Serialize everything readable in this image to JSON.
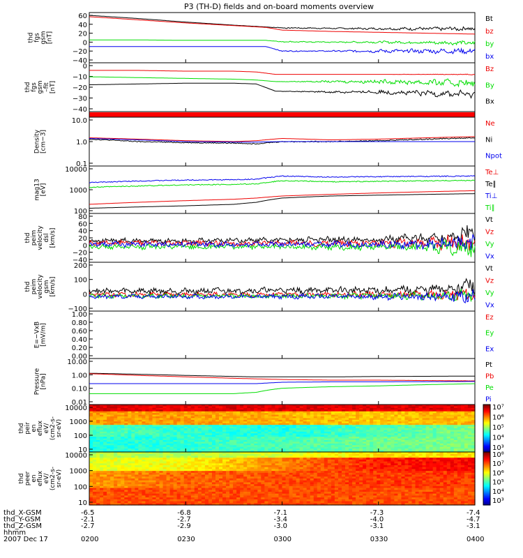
{
  "title": "P3 (TH-D) fields and on-board moments overview",
  "time_ticks": [
    "0200",
    "0230",
    "0300",
    "0330",
    "0400"
  ],
  "orbit_rows": [
    {
      "label": "thd_X-GSM",
      "values": [
        "-6.5",
        "-6.8",
        "-7.1",
        "-7.3",
        "-7.4"
      ]
    },
    {
      "label": "thd_Y-GSM",
      "values": [
        "-2.1",
        "-2.7",
        "-3.4",
        "-4.0",
        "-4.7"
      ]
    },
    {
      "label": "thd_Z-GSM",
      "values": [
        "-2.7",
        "-2.9",
        "-3.0",
        "-3.1",
        "-3.1"
      ]
    },
    {
      "label": "hhmm",
      "values": []
    }
  ],
  "date_label": "2007 Dec 17",
  "colors": {
    "black": "#000000",
    "red": "#ee0000",
    "green": "#00dd00",
    "blue": "#0000ee"
  },
  "chart_data": [
    {
      "type": "line",
      "ylabel": [
        "thd",
        "fgs",
        "gsm",
        "[nT]"
      ],
      "yticks": [
        "60",
        "40",
        "20",
        "0",
        "−20",
        "−40"
      ],
      "ylim": [
        -40,
        60
      ],
      "x": [
        0,
        15,
        30,
        45,
        55,
        60,
        75,
        90,
        120
      ],
      "series": [
        {
          "name": "Bt",
          "color": "#000000",
          "values": [
            60,
            53,
            45,
            38,
            34,
            32,
            31,
            30,
            30
          ],
          "wave": [
            0,
            0,
            0,
            0,
            0,
            1,
            1,
            2,
            4
          ]
        },
        {
          "name": "bz",
          "color": "#ee0000",
          "values": [
            57,
            50,
            43,
            37,
            33,
            27,
            24,
            22,
            18
          ],
          "wave": [
            0,
            0,
            0,
            0,
            0,
            0,
            0,
            0,
            0
          ]
        },
        {
          "name": "by",
          "color": "#00dd00",
          "values": [
            5,
            5,
            4,
            4,
            4,
            1,
            0,
            0,
            -2
          ],
          "wave": [
            0,
            0,
            0,
            0,
            0,
            1,
            1,
            2,
            4
          ]
        },
        {
          "name": "bx",
          "color": "#0000ee",
          "values": [
            -10,
            -10,
            -10,
            -10,
            -10,
            -20,
            -20,
            -20,
            -20
          ],
          "wave": [
            0,
            0,
            0,
            0,
            0,
            1,
            1,
            3,
            5
          ]
        }
      ]
    },
    {
      "type": "line",
      "ylabel": [
        "thd",
        "fgs",
        "gsm",
        "–fit",
        "[nT]"
      ],
      "yticks": [
        "0",
        "−10",
        "−20",
        "−30",
        "−40"
      ],
      "ylim": [
        -48,
        6
      ],
      "x": [
        0,
        15,
        30,
        45,
        52,
        58,
        75,
        90,
        120
      ],
      "series": [
        {
          "name": "Bz",
          "color": "#ee0000",
          "values": [
            0,
            0,
            -1,
            -1,
            -2,
            -5,
            -5,
            -5,
            -5
          ],
          "wave": [
            0,
            0,
            0,
            0,
            0,
            0,
            0,
            0,
            0.5
          ]
        },
        {
          "name": "By",
          "color": "#00dd00",
          "values": [
            -8,
            -9,
            -10,
            -11,
            -12,
            -14,
            -14,
            -14,
            -16
          ],
          "wave": [
            0,
            0,
            0,
            0,
            0,
            0,
            1,
            2,
            4
          ]
        },
        {
          "name": "Bx",
          "color": "#000000",
          "values": [
            -18,
            -17,
            -16,
            -16,
            -17,
            -26,
            -27,
            -27,
            -30
          ],
          "wave": [
            0,
            0,
            0,
            0,
            0,
            0,
            1,
            2,
            4
          ]
        }
      ]
    },
    {
      "type": "heatmap",
      "ylabel": [],
      "color": "#ff0000"
    },
    {
      "type": "line",
      "scale": "log",
      "ylabel": [
        "Density",
        "[cm−3]"
      ],
      "yticks": [
        "10.0",
        "1.0",
        "0.1"
      ],
      "ylim": [
        0.1,
        10
      ],
      "x": [
        0,
        15,
        30,
        45,
        52,
        60,
        75,
        90,
        120
      ],
      "series": [
        {
          "name": "Ne",
          "color": "#ee0000",
          "values": [
            1.5,
            1.3,
            1.1,
            1.0,
            1.1,
            1.4,
            1.2,
            1.3,
            1.7
          ],
          "wave": [
            0,
            0,
            0,
            0,
            0,
            0,
            0,
            0,
            0
          ]
        },
        {
          "name": "Ni",
          "color": "#000000",
          "values": [
            1.3,
            1.0,
            0.9,
            0.85,
            0.8,
            1.0,
            1.0,
            1.1,
            1.5
          ],
          "wave": [
            0.1,
            0.1,
            0.1,
            0.1,
            0.1,
            0.1,
            0.1,
            0.1,
            0.1
          ]
        },
        {
          "name": "Npot",
          "color": "#0000ee",
          "values": [
            1.4,
            1.2,
            1.0,
            0.95,
            0.95,
            1.0,
            1.0,
            1.0,
            1.0
          ],
          "wave": [
            0,
            0,
            0,
            0,
            0,
            0,
            0,
            0,
            0
          ]
        }
      ]
    },
    {
      "type": "line",
      "scale": "log",
      "ylabel": [
        "mag13",
        "[eV]"
      ],
      "yticks": [
        "10000",
        "1000",
        "100"
      ],
      "ylim": [
        100,
        10000
      ],
      "x": [
        0,
        15,
        30,
        45,
        52,
        60,
        75,
        90,
        120
      ],
      "series": [
        {
          "name": "Te⊥",
          "color": "#ee0000",
          "values": [
            200,
            250,
            300,
            350,
            400,
            500,
            600,
            700,
            900
          ],
          "wave": [
            0,
            0,
            0,
            0,
            0,
            0,
            0,
            0,
            0
          ]
        },
        {
          "name": "Te∥",
          "color": "#000000",
          "values": [
            130,
            150,
            170,
            200,
            250,
            400,
            500,
            550,
            650
          ],
          "wave": [
            0,
            0,
            0,
            0,
            0,
            0,
            0,
            0,
            0
          ]
        },
        {
          "name": "Ti⊥",
          "color": "#0000ee",
          "values": [
            2200,
            2600,
            2900,
            3000,
            3200,
            4500,
            4000,
            4200,
            4500
          ],
          "wave": [
            0.1,
            0.1,
            0.1,
            0.1,
            0.1,
            0.1,
            0.1,
            0.1,
            0.1
          ]
        },
        {
          "name": "Ti∥",
          "color": "#00dd00",
          "values": [
            1300,
            1500,
            1700,
            1800,
            1900,
            2700,
            2400,
            2500,
            2800
          ],
          "wave": [
            0.1,
            0.1,
            0.1,
            0.1,
            0.1,
            0.1,
            0.1,
            0.1,
            0.1
          ]
        }
      ]
    },
    {
      "type": "line",
      "ylabel": [
        "thd",
        "peim",
        "velocity",
        "dsl",
        "[km/s]"
      ],
      "yticks": [
        "80",
        "60",
        "40",
        "20",
        "0",
        "−20",
        "−40"
      ],
      "ylim": [
        -40,
        80
      ],
      "x": [
        0,
        30,
        60,
        90,
        110,
        120
      ],
      "series": [
        {
          "name": "Vt",
          "color": "#000000",
          "values": [
            12,
            12,
            14,
            16,
            20,
            30
          ],
          "wave": [
            6,
            6,
            6,
            8,
            15,
            25
          ]
        },
        {
          "name": "Vz",
          "color": "#ee0000",
          "values": [
            5,
            5,
            5,
            5,
            5,
            5
          ],
          "wave": [
            6,
            6,
            6,
            8,
            15,
            25
          ]
        },
        {
          "name": "Vy",
          "color": "#00dd00",
          "values": [
            -5,
            -5,
            -5,
            -5,
            -5,
            -5
          ],
          "wave": [
            6,
            6,
            6,
            8,
            15,
            25
          ]
        },
        {
          "name": "Vx",
          "color": "#0000ee",
          "values": [
            2,
            2,
            2,
            2,
            2,
            2
          ],
          "wave": [
            6,
            6,
            6,
            8,
            15,
            25
          ]
        }
      ]
    },
    {
      "type": "line",
      "ylabel": [
        "thd",
        "peim",
        "velocity",
        "gsm",
        "[km/s]"
      ],
      "yticks": [
        "200",
        "100",
        "0",
        "−100"
      ],
      "ylim": [
        -100,
        250
      ],
      "x": [
        0,
        30,
        60,
        90,
        110,
        120
      ],
      "series": [
        {
          "name": "Vt",
          "color": "#000000",
          "values": [
            40,
            40,
            45,
            45,
            50,
            90
          ],
          "wave": [
            20,
            20,
            20,
            25,
            35,
            60
          ]
        },
        {
          "name": "Vz",
          "color": "#ee0000",
          "values": [
            10,
            10,
            10,
            10,
            10,
            10
          ],
          "wave": [
            15,
            15,
            15,
            20,
            30,
            50
          ]
        },
        {
          "name": "Vy",
          "color": "#00dd00",
          "values": [
            0,
            0,
            0,
            0,
            0,
            0
          ],
          "wave": [
            15,
            15,
            15,
            20,
            30,
            50
          ]
        },
        {
          "name": "Vx",
          "color": "#0000ee",
          "values": [
            -5,
            -5,
            -5,
            -5,
            -5,
            -5
          ],
          "wave": [
            15,
            15,
            15,
            20,
            30,
            50
          ]
        }
      ]
    },
    {
      "type": "line",
      "ylabel": [
        "E=−VxB",
        "[mV/m]"
      ],
      "yticks": [
        "1.00",
        "0.80",
        "0.60",
        "0.40",
        "0.20",
        "0.00"
      ],
      "ylim": [
        0,
        1
      ],
      "x": [],
      "series": [
        {
          "name": "Ez",
          "color": "#ee0000",
          "values": []
        },
        {
          "name": "Ey",
          "color": "#00dd00",
          "values": []
        },
        {
          "name": "Ex",
          "color": "#0000ee",
          "values": []
        }
      ]
    },
    {
      "type": "line",
      "scale": "log",
      "ylabel": [
        "Pressure",
        "[nPa]"
      ],
      "yticks": [
        "10.00",
        "1.00",
        "0.10",
        "0.01"
      ],
      "ylim": [
        0.01,
        10
      ],
      "x": [
        0,
        15,
        30,
        45,
        52,
        60,
        75,
        90,
        120
      ],
      "series": [
        {
          "name": "Pt",
          "color": "#000000",
          "values": [
            1.3,
            1.1,
            0.9,
            0.75,
            0.7,
            0.7,
            0.7,
            0.75,
            0.8
          ],
          "wave": [
            0,
            0,
            0,
            0,
            0,
            0,
            0,
            0,
            0
          ]
        },
        {
          "name": "Pb",
          "color": "#ee0000",
          "values": [
            1.2,
            0.9,
            0.7,
            0.55,
            0.5,
            0.45,
            0.4,
            0.4,
            0.35
          ],
          "wave": [
            0,
            0,
            0,
            0,
            0,
            0,
            0,
            0,
            0.05
          ]
        },
        {
          "name": "Pe",
          "color": "#00dd00",
          "values": [
            0.04,
            0.04,
            0.04,
            0.04,
            0.05,
            0.1,
            0.13,
            0.15,
            0.22
          ],
          "wave": [
            0,
            0,
            0,
            0,
            0,
            0,
            0,
            0,
            0
          ]
        },
        {
          "name": "Pi",
          "color": "#0000ee",
          "values": [
            0.22,
            0.22,
            0.22,
            0.22,
            0.22,
            0.28,
            0.3,
            0.3,
            0.32
          ],
          "wave": [
            0,
            0,
            0,
            0,
            0,
            0,
            0,
            0,
            0
          ]
        }
      ]
    },
    {
      "type": "heatmap",
      "ylabel": [
        "thd",
        "peir",
        "en",
        "eflux",
        "eV/",
        "(cm2-s-",
        "sr-eV)"
      ],
      "yticks": [
        "10000",
        "1000",
        "100",
        "10"
      ],
      "ylim": [
        10,
        10000
      ],
      "colorbar": {
        "ticks": [
          "10⁷",
          "10⁶",
          "10⁵",
          "10⁴",
          "10³"
        ]
      },
      "bands": [
        {
          "e_low": 0.88,
          "e_high": 1.0,
          "levels": [
            0.9,
            0.9,
            0.9,
            0.9,
            0.9
          ]
        },
        {
          "e_low": 0.6,
          "e_high": 0.88,
          "levels": [
            0.72,
            0.72,
            0.7,
            0.68,
            0.7
          ]
        },
        {
          "e_low": 0.35,
          "e_high": 0.6,
          "levels": [
            0.45,
            0.42,
            0.4,
            0.45,
            0.5
          ]
        },
        {
          "e_low": 0.0,
          "e_high": 0.35,
          "levels": [
            0.4,
            0.42,
            0.45,
            0.48,
            0.5
          ]
        }
      ]
    },
    {
      "type": "heatmap",
      "ylabel": [
        "thd",
        "peer",
        "en",
        "eflux",
        "eV/",
        "(cm2-s-",
        "sr-eV)"
      ],
      "yticks": [
        "10000",
        "1000",
        "100",
        "10"
      ],
      "ylim": [
        10,
        10000
      ],
      "colorbar": {
        "ticks": [
          "10⁸",
          "10⁷",
          "10⁶",
          "10⁵",
          "10⁴",
          "10³"
        ]
      },
      "bands": [
        {
          "e_low": 0.9,
          "e_high": 1.0,
          "levels": [
            0.55,
            0.55,
            0.6,
            0.65,
            0.65
          ]
        },
        {
          "e_low": 0.65,
          "e_high": 0.9,
          "levels": [
            0.6,
            0.62,
            0.75,
            0.85,
            0.88
          ]
        },
        {
          "e_low": 0.35,
          "e_high": 0.65,
          "levels": [
            0.72,
            0.78,
            0.8,
            0.82,
            0.82
          ]
        },
        {
          "e_low": 0.0,
          "e_high": 0.35,
          "levels": [
            0.8,
            0.8,
            0.8,
            0.8,
            0.8
          ]
        }
      ]
    }
  ]
}
